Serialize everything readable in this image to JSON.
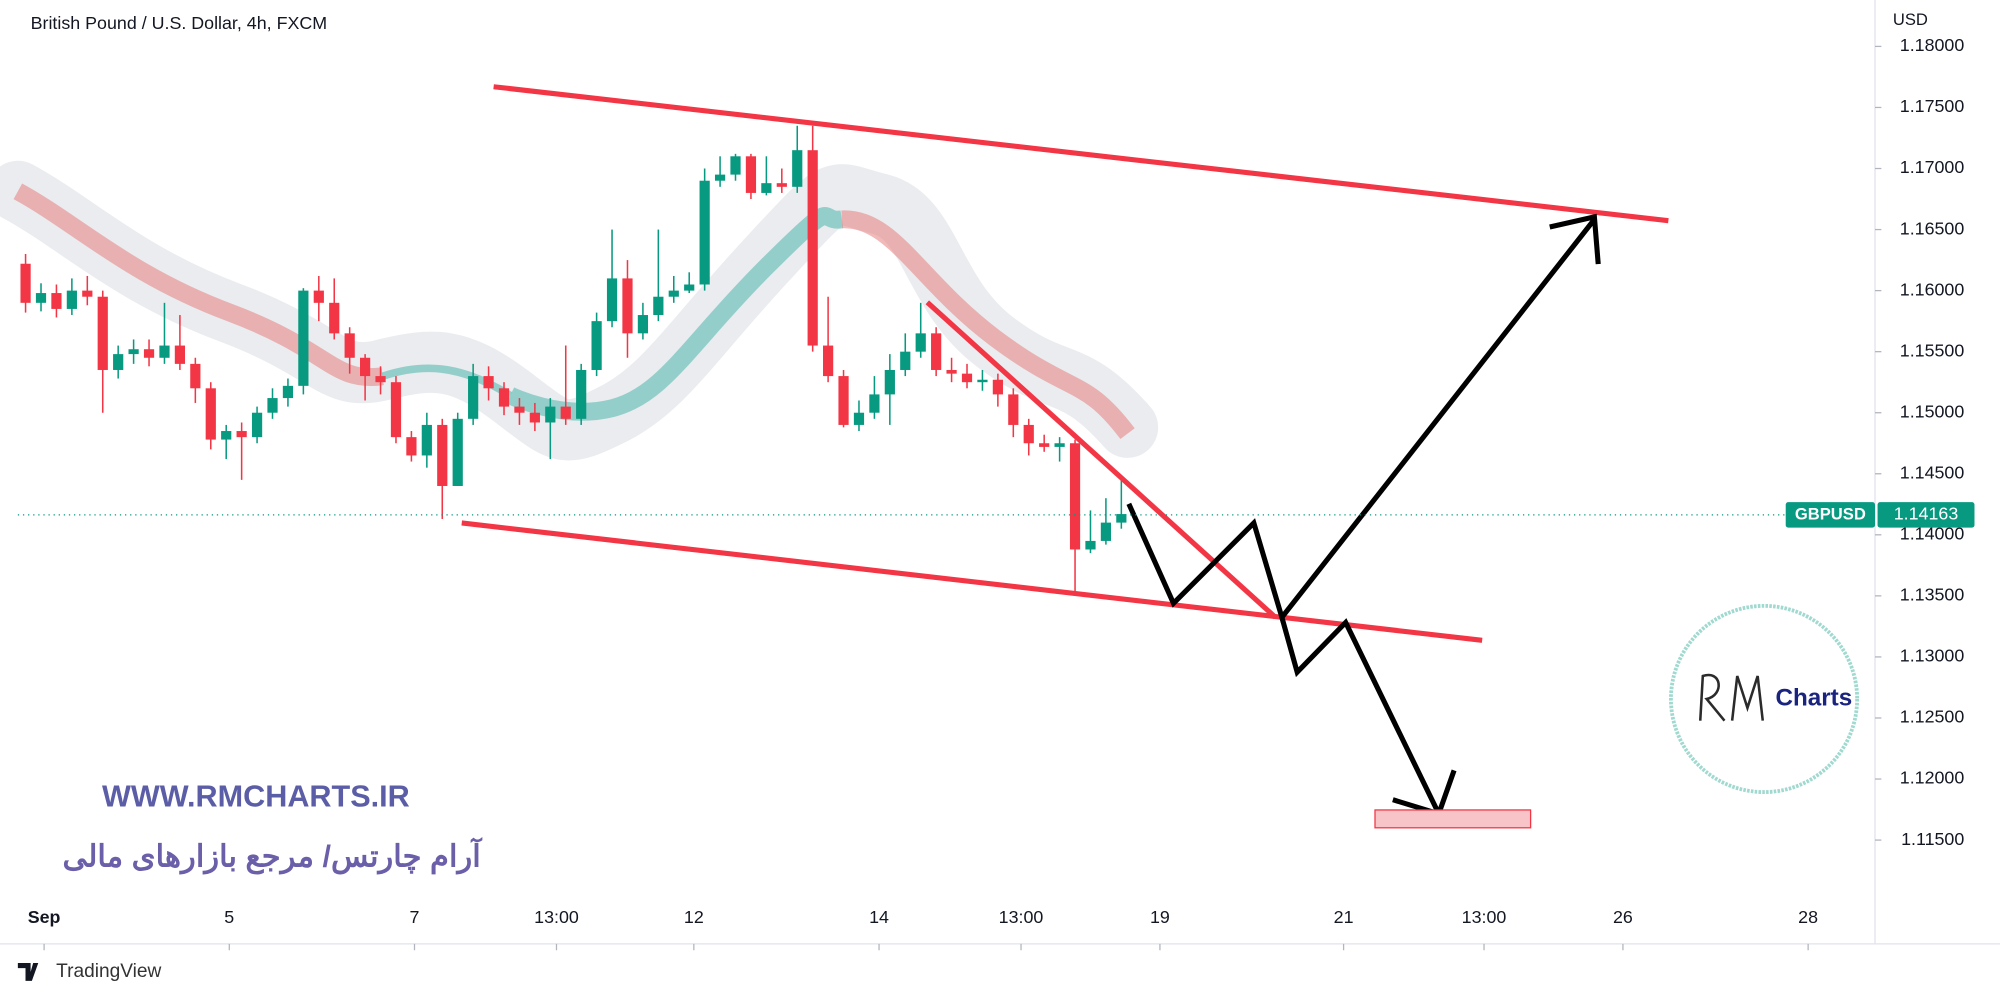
{
  "chart_data": {
    "type": "candlestick",
    "title": "British Pound / U.S. Dollar, 4h, FXCM",
    "y_axis_label": "USD",
    "symbol": "GBPUSD",
    "last_price": 1.14163,
    "up_color": "#089981",
    "down_color": "#f23645",
    "grid": false,
    "xlim": [
      -0.5,
      119.75
    ],
    "ylim": [
      1.1065,
      1.1838
    ],
    "xticks": [
      {
        "value": 1.2,
        "label": "Sep"
      },
      {
        "value": 13.2,
        "label": "5"
      },
      {
        "value": 25.2,
        "label": "7"
      },
      {
        "value": 34.4,
        "label": "13:00"
      },
      {
        "value": 43.3,
        "label": "12"
      },
      {
        "value": 55.3,
        "label": "14"
      },
      {
        "value": 64.5,
        "label": "13:00"
      },
      {
        "value": 73.5,
        "label": "19"
      },
      {
        "value": 85.4,
        "label": "21"
      },
      {
        "value": 94.5,
        "label": "13:00"
      },
      {
        "value": 103.5,
        "label": "26"
      },
      {
        "value": 115.5,
        "label": "28"
      }
    ],
    "yticks": [
      {
        "value": 1.115,
        "label": "1.11500"
      },
      {
        "value": 1.12,
        "label": "1.12000"
      },
      {
        "value": 1.125,
        "label": "1.12500"
      },
      {
        "value": 1.13,
        "label": "1.13000"
      },
      {
        "value": 1.135,
        "label": "1.13500"
      },
      {
        "value": 1.14,
        "label": "1.14000"
      },
      {
        "value": 1.145,
        "label": "1.14500"
      },
      {
        "value": 1.15,
        "label": "1.15000"
      },
      {
        "value": 1.155,
        "label": "1.15500"
      },
      {
        "value": 1.16,
        "label": "1.16000"
      },
      {
        "value": 1.165,
        "label": "1.16500"
      },
      {
        "value": 1.17,
        "label": "1.17000"
      },
      {
        "value": 1.175,
        "label": "1.17500"
      },
      {
        "value": 1.18,
        "label": "1.18000"
      }
    ],
    "open": [
      1.1622,
      1.159,
      1.1598,
      1.1585,
      1.16,
      1.1595,
      1.1535,
      1.1548,
      1.1552,
      1.1545,
      1.1555,
      1.154,
      1.152,
      1.1478,
      1.1485,
      1.148,
      1.15,
      1.1512,
      1.1522,
      1.16,
      1.159,
      1.1565,
      1.1545,
      1.153,
      1.1525,
      1.148,
      1.1465,
      1.149,
      1.144,
      1.1495,
      1.153,
      1.152,
      1.1505,
      1.15,
      1.1492,
      1.1505,
      1.1495,
      1.1535,
      1.1575,
      1.161,
      1.1565,
      1.158,
      1.1595,
      1.16,
      1.1605,
      1.169,
      1.1695,
      1.171,
      1.168,
      1.1688,
      1.1685,
      1.1715,
      1.1555,
      1.153,
      1.149,
      1.15,
      1.1515,
      1.1535,
      1.155,
      1.1565,
      1.1535,
      1.1532,
      1.1525,
      1.1527,
      1.1515,
      1.149,
      1.1475,
      1.1472,
      1.1475,
      1.1388,
      1.1395,
      1.141
    ],
    "high": [
      1.163,
      1.1606,
      1.1605,
      1.161,
      1.1612,
      1.16,
      1.1555,
      1.156,
      1.156,
      1.159,
      1.158,
      1.1545,
      1.1525,
      1.149,
      1.1492,
      1.1505,
      1.152,
      1.1528,
      1.1602,
      1.1612,
      1.161,
      1.157,
      1.1548,
      1.1538,
      1.153,
      1.1485,
      1.15,
      1.1495,
      1.15,
      1.154,
      1.1538,
      1.1525,
      1.1512,
      1.1508,
      1.1512,
      1.1555,
      1.154,
      1.1582,
      1.165,
      1.1625,
      1.159,
      1.165,
      1.1612,
      1.1615,
      1.17,
      1.171,
      1.1712,
      1.1712,
      1.171,
      1.17,
      1.1735,
      1.1735,
      1.1595,
      1.1535,
      1.151,
      1.153,
      1.1548,
      1.1565,
      1.159,
      1.157,
      1.1545,
      1.154,
      1.1535,
      1.1532,
      1.152,
      1.1495,
      1.1482,
      1.148,
      1.1478,
      1.142,
      1.143,
      1.1445
    ],
    "low": [
      1.1582,
      1.1583,
      1.1578,
      1.158,
      1.1588,
      1.15,
      1.1528,
      1.154,
      1.1538,
      1.154,
      1.1535,
      1.1508,
      1.147,
      1.1462,
      1.1445,
      1.1475,
      1.1495,
      1.1505,
      1.1515,
      1.1575,
      1.156,
      1.1532,
      1.151,
      1.1515,
      1.1475,
      1.146,
      1.1455,
      1.1413,
      1.144,
      1.149,
      1.151,
      1.1498,
      1.149,
      1.1485,
      1.1462,
      1.149,
      1.149,
      1.153,
      1.157,
      1.1545,
      1.156,
      1.1575,
      1.159,
      1.1598,
      1.16,
      1.1685,
      1.169,
      1.1675,
      1.1678,
      1.168,
      1.168,
      1.155,
      1.1525,
      1.1488,
      1.1485,
      1.1495,
      1.149,
      1.153,
      1.1545,
      1.153,
      1.1525,
      1.152,
      1.1518,
      1.1505,
      1.148,
      1.1465,
      1.1468,
      1.146,
      1.1351,
      1.1385,
      1.1392,
      1.1405
    ],
    "close": [
      1.159,
      1.1598,
      1.1585,
      1.16,
      1.1595,
      1.1535,
      1.1548,
      1.1552,
      1.1545,
      1.1555,
      1.154,
      1.152,
      1.1478,
      1.1485,
      1.148,
      1.15,
      1.1512,
      1.1522,
      1.16,
      1.159,
      1.1565,
      1.1545,
      1.153,
      1.1525,
      1.148,
      1.1465,
      1.149,
      1.144,
      1.1495,
      1.153,
      1.152,
      1.1505,
      1.15,
      1.1492,
      1.1505,
      1.1495,
      1.1535,
      1.1575,
      1.161,
      1.1565,
      1.158,
      1.1595,
      1.16,
      1.1605,
      1.169,
      1.1695,
      1.171,
      1.168,
      1.1688,
      1.1685,
      1.1715,
      1.1555,
      1.153,
      1.149,
      1.15,
      1.1515,
      1.1535,
      1.155,
      1.1565,
      1.1535,
      1.1532,
      1.1525,
      1.1527,
      1.1515,
      1.149,
      1.1475,
      1.1472,
      1.1475,
      1.1388,
      1.1395,
      1.141,
      1.1417
    ]
  },
  "branding": {
    "site": "WWW.RMCHARTS.IR",
    "slogan": "آرام چارتس/ مرجع بازارهای مالی",
    "logo_text": "Charts",
    "platform": "TradingView"
  }
}
